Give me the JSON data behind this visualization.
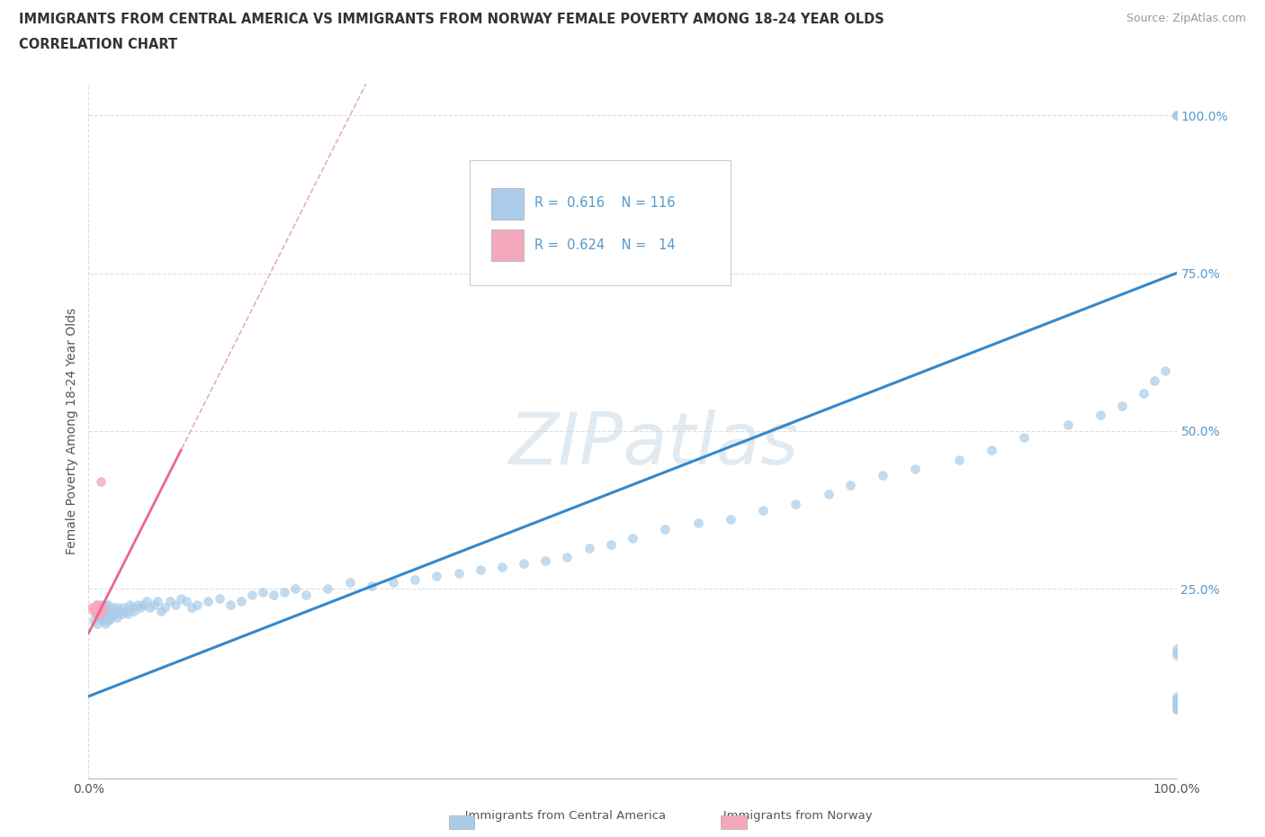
{
  "title_line1": "IMMIGRANTS FROM CENTRAL AMERICA VS IMMIGRANTS FROM NORWAY FEMALE POVERTY AMONG 18-24 YEAR OLDS",
  "title_line2": "CORRELATION CHART",
  "source": "Source: ZipAtlas.com",
  "ylabel": "Female Poverty Among 18-24 Year Olds",
  "xlim": [
    0,
    1.0
  ],
  "ylim": [
    -0.05,
    1.05
  ],
  "legend1_label": "Immigrants from Central America",
  "legend2_label": "Immigrants from Norway",
  "r1": "0.616",
  "n1": "116",
  "r2": "0.624",
  "n2": "14",
  "scatter_color1": "#aacce8",
  "scatter_color2": "#f4a8bc",
  "line_color1": "#3388cc",
  "line_color2": "#ee6688",
  "ref_line_color": "#ddaaaa",
  "watermark": "ZIPatlas",
  "watermark_color": "#d0dce8",
  "background_color": "#ffffff",
  "grid_color": "#dddddd",
  "title_color": "#333333",
  "axis_label_color": "#555555",
  "yticklabel_color": "#5599cc",
  "ca_x": [
    0.005,
    0.007,
    0.008,
    0.01,
    0.01,
    0.011,
    0.012,
    0.012,
    0.013,
    0.013,
    0.014,
    0.014,
    0.015,
    0.015,
    0.015,
    0.016,
    0.016,
    0.017,
    0.017,
    0.018,
    0.018,
    0.019,
    0.019,
    0.02,
    0.02,
    0.021,
    0.022,
    0.023,
    0.024,
    0.025,
    0.026,
    0.027,
    0.028,
    0.03,
    0.032,
    0.034,
    0.036,
    0.038,
    0.04,
    0.042,
    0.045,
    0.048,
    0.05,
    0.053,
    0.056,
    0.06,
    0.063,
    0.067,
    0.07,
    0.075,
    0.08,
    0.085,
    0.09,
    0.095,
    0.1,
    0.11,
    0.12,
    0.13,
    0.14,
    0.15,
    0.16,
    0.17,
    0.18,
    0.19,
    0.2,
    0.22,
    0.24,
    0.26,
    0.28,
    0.3,
    0.32,
    0.34,
    0.36,
    0.38,
    0.4,
    0.42,
    0.44,
    0.46,
    0.48,
    0.5,
    0.53,
    0.56,
    0.59,
    0.62,
    0.65,
    0.68,
    0.7,
    0.73,
    0.76,
    0.8,
    0.83,
    0.86,
    0.9,
    0.93,
    0.95,
    0.97,
    0.98,
    0.99,
    1.0,
    1.0,
    1.0,
    1.0,
    1.0,
    1.0,
    1.0,
    1.0,
    1.0,
    1.0,
    1.0,
    1.0,
    1.0,
    1.0,
    1.0,
    1.0,
    1.0,
    1.0
  ],
  "ca_y": [
    0.2,
    0.21,
    0.195,
    0.22,
    0.205,
    0.215,
    0.21,
    0.225,
    0.2,
    0.215,
    0.205,
    0.22,
    0.195,
    0.215,
    0.225,
    0.2,
    0.21,
    0.205,
    0.22,
    0.215,
    0.225,
    0.2,
    0.21,
    0.215,
    0.205,
    0.21,
    0.215,
    0.22,
    0.21,
    0.215,
    0.205,
    0.22,
    0.215,
    0.21,
    0.22,
    0.215,
    0.21,
    0.225,
    0.22,
    0.215,
    0.225,
    0.22,
    0.225,
    0.23,
    0.22,
    0.225,
    0.23,
    0.215,
    0.22,
    0.23,
    0.225,
    0.235,
    0.23,
    0.22,
    0.225,
    0.23,
    0.235,
    0.225,
    0.23,
    0.24,
    0.245,
    0.24,
    0.245,
    0.25,
    0.24,
    0.25,
    0.26,
    0.255,
    0.26,
    0.265,
    0.27,
    0.275,
    0.28,
    0.285,
    0.29,
    0.295,
    0.3,
    0.315,
    0.32,
    0.33,
    0.345,
    0.355,
    0.36,
    0.375,
    0.385,
    0.4,
    0.415,
    0.43,
    0.44,
    0.455,
    0.47,
    0.49,
    0.51,
    0.525,
    0.54,
    0.56,
    0.58,
    0.595,
    1.0,
    1.0,
    1.0,
    1.0,
    1.0,
    1.0,
    0.06,
    0.07,
    0.08,
    0.075,
    0.065,
    0.07,
    0.075,
    0.06,
    0.065,
    0.155,
    0.15,
    0.145
  ],
  "norway_x": [
    0.003,
    0.005,
    0.006,
    0.007,
    0.007,
    0.008,
    0.008,
    0.009,
    0.009,
    0.01,
    0.01,
    0.011,
    0.012,
    0.013
  ],
  "norway_y": [
    0.22,
    0.215,
    0.22,
    0.215,
    0.225,
    0.215,
    0.22,
    0.215,
    0.225,
    0.21,
    0.22,
    0.42,
    0.215,
    0.22
  ],
  "norway_outlier_x": [
    0.008
  ],
  "norway_outlier_y": [
    0.44
  ],
  "line1_x0": 0.0,
  "line1_y0": 0.08,
  "line1_x1": 1.0,
  "line1_y1": 0.75,
  "line2_x0": 0.0,
  "line2_y0": 0.18,
  "line2_x1": 0.085,
  "line2_y1": 0.47
}
